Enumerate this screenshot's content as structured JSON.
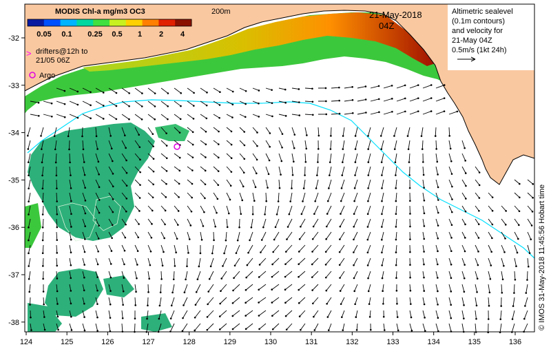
{
  "map": {
    "colorbar": {
      "title": "MODIS Chl-a mg/m3 OC3",
      "ticks": [
        "0.05",
        "0.1",
        "0.25",
        "0.5",
        "1",
        "2",
        "4"
      ],
      "colors": [
        "#0a1aa0",
        "#0050ff",
        "#00b4ff",
        "#00d8a0",
        "#40e040",
        "#c8f020",
        "#ffd000",
        "#ff8000",
        "#e02000",
        "#8a1000"
      ]
    },
    "legend": {
      "drifters_line1": "drifters@12h to",
      "drifters_line2": "21/05 06Z",
      "argo": "Argo",
      "drifter_symbol": ">",
      "argo_symbol": "o"
    },
    "date": {
      "line1": "21-May-2018",
      "line2": "04Z"
    },
    "bathymetry_label": "200m",
    "altimetry_note": {
      "line1": "Altimetric sealevel",
      "line2": "(0.1m contours)",
      "line3": "and velocity for",
      "line4": "21-May 04Z",
      "line5": "0.5m/s (1kt 24h)"
    },
    "credit": "© IMOS 31-May-2018 11:45:56 Hobart time",
    "x_ticks": [
      "124",
      "125",
      "126",
      "127",
      "128",
      "129",
      "130",
      "131",
      "132",
      "133",
      "134",
      "135",
      "136"
    ],
    "y_ticks": [
      "-32",
      "-33",
      "-34",
      "-35",
      "-36",
      "-37",
      "-38"
    ],
    "colors": {
      "land": "#fac8a0",
      "ocean_no_data": "#ffffff",
      "shelf_green": "#3cc83c",
      "offshore_chl": "#2db07a",
      "coastal_high": "#e8a000",
      "contour_200m": "#00e0ff",
      "argo": "#e000e0",
      "drifter": "#ff00ff",
      "arrow": "#000000"
    }
  }
}
